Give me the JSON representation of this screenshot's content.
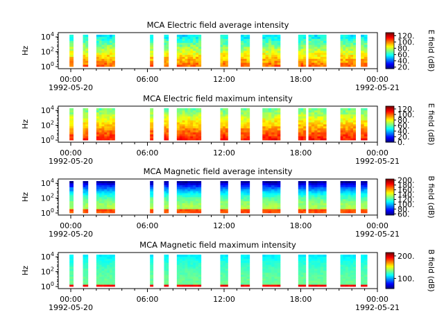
{
  "chart_data": [
    {
      "type": "heatmap",
      "title": "MCA  Electric field average intensity",
      "ylabel": "Hz",
      "yscale": "log",
      "y_ticks": [
        "10^0",
        "10^2",
        "10^4"
      ],
      "x_ticks": [
        "00:00",
        "06:00",
        "12:00",
        "18:00",
        "00:00"
      ],
      "x_tick_dates": [
        "1992-05-20",
        "",
        "",
        "",
        "1992-05-21"
      ],
      "colorbar": {
        "label": "E field (dB)",
        "ticks": [
          "20.",
          "40.",
          "60.",
          "80.",
          "100.",
          "120."
        ],
        "range": [
          15,
          130
        ]
      },
      "data_intervals_hours": [
        [
          -0.1,
          0.2
        ],
        [
          0.95,
          1.35
        ],
        [
          2.0,
          3.45
        ],
        [
          6.2,
          6.45
        ],
        [
          7.3,
          7.65
        ],
        [
          8.3,
          10.2
        ],
        [
          11.7,
          12.3
        ],
        [
          13.3,
          14.0
        ],
        [
          15.0,
          16.4
        ],
        [
          17.8,
          18.4
        ],
        [
          18.6,
          20.0
        ],
        [
          21.1,
          22.3
        ],
        [
          22.7,
          23.2
        ]
      ]
    },
    {
      "type": "heatmap",
      "title": "MCA  Electric field maximum intensity",
      "ylabel": "Hz",
      "yscale": "log",
      "y_ticks": [
        "10^0",
        "10^2",
        "10^4"
      ],
      "x_ticks": [
        "00:00",
        "06:00",
        "12:00",
        "18:00",
        "00:00"
      ],
      "x_tick_dates": [
        "1992-05-20",
        "",
        "",
        "",
        "1992-05-21"
      ],
      "colorbar": {
        "label": "E field (dB)",
        "ticks": [
          "0.",
          "20.",
          "40.",
          "60.",
          "80.",
          "100.",
          "120."
        ],
        "range": [
          0,
          130
        ]
      },
      "data_intervals_hours": [
        [
          -0.1,
          0.2
        ],
        [
          0.95,
          1.35
        ],
        [
          2.0,
          3.45
        ],
        [
          6.2,
          6.45
        ],
        [
          7.3,
          7.65
        ],
        [
          8.3,
          10.2
        ],
        [
          11.7,
          12.3
        ],
        [
          13.3,
          14.0
        ],
        [
          15.0,
          16.4
        ],
        [
          17.8,
          18.4
        ],
        [
          18.6,
          20.0
        ],
        [
          21.1,
          22.3
        ],
        [
          22.7,
          23.2
        ]
      ]
    },
    {
      "type": "heatmap",
      "title": "MCA  Magnetic field average intensity",
      "ylabel": "Hz",
      "yscale": "log",
      "y_ticks": [
        "10^0",
        "10^2",
        "10^4"
      ],
      "x_ticks": [
        "00:00",
        "06:00",
        "12:00",
        "18:00",
        "00:00"
      ],
      "x_tick_dates": [
        "1992-05-20",
        "",
        "",
        "",
        "1992-05-21"
      ],
      "colorbar": {
        "label": "B field (dB)",
        "ticks": [
          "60.",
          "80.",
          "100.",
          "120.",
          "140.",
          "160.",
          "180.",
          "200."
        ],
        "range": [
          55,
          205
        ]
      },
      "data_intervals_hours": [
        [
          -0.1,
          0.2
        ],
        [
          0.95,
          1.35
        ],
        [
          2.0,
          3.45
        ],
        [
          6.2,
          6.45
        ],
        [
          7.3,
          7.65
        ],
        [
          8.3,
          10.2
        ],
        [
          11.7,
          12.3
        ],
        [
          13.3,
          14.0
        ],
        [
          15.0,
          16.4
        ],
        [
          17.8,
          18.4
        ],
        [
          18.6,
          20.0
        ],
        [
          21.1,
          22.3
        ],
        [
          22.7,
          23.2
        ]
      ]
    },
    {
      "type": "heatmap",
      "title": "MCA  Magnetic field maximum intensity",
      "ylabel": "Hz",
      "yscale": "log",
      "y_ticks": [
        "10^0",
        "10^2",
        "10^4"
      ],
      "x_ticks": [
        "00:00",
        "06:00",
        "12:00",
        "18:00",
        "00:00"
      ],
      "x_tick_dates": [
        "1992-05-20",
        "",
        "",
        "",
        "1992-05-21"
      ],
      "colorbar": {
        "label": "B field (dB)",
        "ticks": [
          "100.",
          "200."
        ],
        "range": [
          55,
          215
        ]
      },
      "data_intervals_hours": [
        [
          -0.1,
          0.2
        ],
        [
          0.95,
          1.35
        ],
        [
          2.0,
          3.45
        ],
        [
          6.2,
          6.45
        ],
        [
          7.3,
          7.65
        ],
        [
          8.3,
          10.2
        ],
        [
          11.7,
          12.3
        ],
        [
          13.3,
          14.0
        ],
        [
          15.0,
          16.4
        ],
        [
          17.8,
          18.4
        ],
        [
          18.6,
          20.0
        ],
        [
          21.1,
          22.3
        ],
        [
          22.7,
          23.2
        ]
      ]
    }
  ]
}
